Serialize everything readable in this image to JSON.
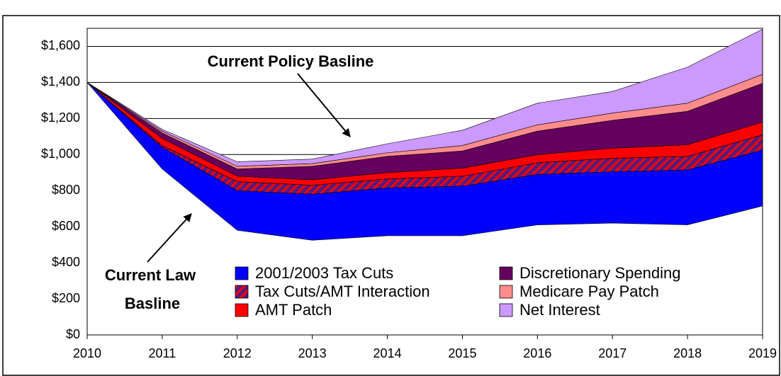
{
  "chart_data": {
    "type": "stacked_area",
    "annotations": [
      "Current Policy Basline",
      "Current Law",
      "Basline"
    ],
    "x": [
      2010,
      2011,
      2012,
      2013,
      2014,
      2015,
      2016,
      2017,
      2018,
      2019
    ],
    "xlim": [
      2010,
      2019
    ],
    "xticks": [
      2010,
      2011,
      2012,
      2013,
      2014,
      2015,
      2016,
      2017,
      2018,
      2019
    ],
    "ylim": [
      0,
      1700
    ],
    "yticks": [
      {
        "value": 0,
        "label": "$0"
      },
      {
        "value": 200,
        "label": "$200"
      },
      {
        "value": 400,
        "label": "$400"
      },
      {
        "value": 600,
        "label": "$600"
      },
      {
        "value": 800,
        "label": "$800"
      },
      {
        "value": 1000,
        "label": "$1,000"
      },
      {
        "value": 1200,
        "label": "$1,200"
      },
      {
        "value": 1400,
        "label": "$1,400"
      },
      {
        "value": 1600,
        "label": "$1,600"
      }
    ],
    "grid": true,
    "baseline_values": [
      1400,
      920,
      580,
      525,
      550,
      550,
      610,
      620,
      610,
      715
    ],
    "series": [
      {
        "name": "2001/2003 Tax Cuts",
        "color": "#0000ff",
        "values": [
          0,
          120,
          220,
          255,
          265,
          275,
          280,
          285,
          305,
          310
        ]
      },
      {
        "name": "Tax Cuts/AMT Interaction",
        "color": "#5a1a7a",
        "hatch": "#ff0000",
        "values": [
          0,
          10,
          50,
          50,
          50,
          55,
          65,
          75,
          75,
          85
        ]
      },
      {
        "name": "AMT Patch",
        "color": "#ff0000",
        "values": [
          0,
          40,
          30,
          30,
          35,
          45,
          45,
          55,
          65,
          70
        ]
      },
      {
        "name": "Discretionary Spending",
        "color": "#66005f",
        "values": [
          0,
          30,
          40,
          75,
          90,
          95,
          130,
          155,
          185,
          215
        ]
      },
      {
        "name": "Medicare Pay Patch",
        "color": "#ff8c8c",
        "values": [
          0,
          10,
          15,
          15,
          20,
          30,
          35,
          40,
          45,
          50
        ]
      },
      {
        "name": "Net Interest",
        "color": "#cc99ff",
        "values": [
          0,
          10,
          25,
          25,
          50,
          85,
          120,
          120,
          200,
          250
        ]
      }
    ]
  }
}
